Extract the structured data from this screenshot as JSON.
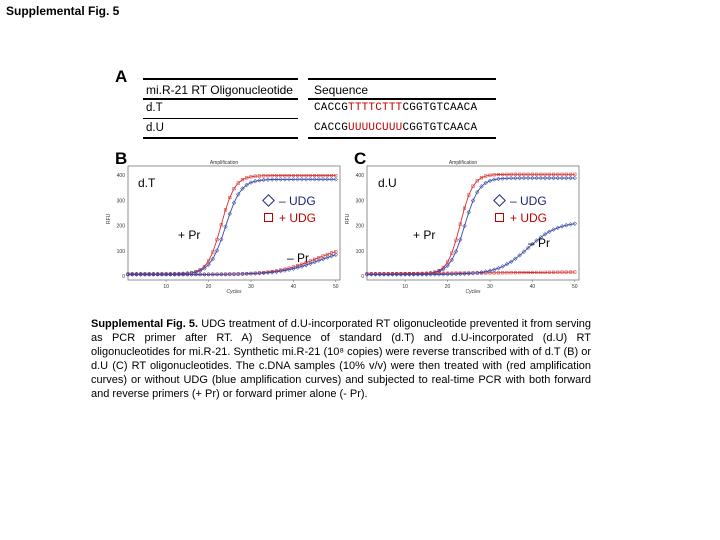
{
  "figure_title": "Supplemental Fig. 5",
  "panels": {
    "a": "A",
    "b": "B",
    "c": "C"
  },
  "table": {
    "header_oligo": "mi.R-21 RT Oligonucleotide",
    "header_seq": "Sequence",
    "rows": [
      {
        "name": "d.T",
        "seq_pre": "CACCG",
        "seq_hl": "TTTTCTTT",
        "seq_post": "CGGTGTCAACA"
      },
      {
        "name": "d.U",
        "seq_pre": "CACCG",
        "seq_hl": "UUUUCUUU",
        "seq_post": "CGGTGTCAACA"
      }
    ]
  },
  "plots": {
    "b": {
      "label": "d.T",
      "title": "Amplification",
      "xlabel": "Cycles",
      "ylabel": "RFU",
      "legend_minus": "– UDG",
      "legend_plus": "+ UDG",
      "pr_plus": "+ Pr",
      "pr_minus": "– Pr"
    },
    "c": {
      "label": "d.U",
      "title": "Amplification",
      "xlabel": "Cycles",
      "ylabel": "RFU",
      "legend_minus": "– UDG",
      "legend_plus": "+ UDG",
      "pr_plus": "+ Pr",
      "pr_minus": "– Pr"
    }
  },
  "axis": {
    "x_ticks": [
      "10",
      "20",
      "30",
      "40",
      "50"
    ],
    "y_ticks": [
      "400",
      "300",
      "200",
      "100",
      "0"
    ]
  },
  "colors": {
    "blue": "#1a237e",
    "red": "#c00000",
    "blue_line": "#3a4aa8",
    "red_line": "#d23030"
  },
  "caption": {
    "bold": "Supplemental Fig. 5.",
    "text": " UDG treatment of d.U-incorporated RT oligonucleotide prevented it from serving as PCR primer after RT. A) Sequence of standard (d.T) and d.U-incorporated (d.U) RT oligonucleotides for mi.R-21. Synthetic mi.R-21 (10⁸ copies) were reverse transcribed with of d.T (B) or d.U (C) RT oligonucleotides. The c.DNA samples (10% v/v) were then treated with (red amplification curves) or without UDG (blue amplification curves) and subjected to real-time PCR with both forward and reverse primers (+ Pr) or forward primer alone (- Pr)."
  }
}
